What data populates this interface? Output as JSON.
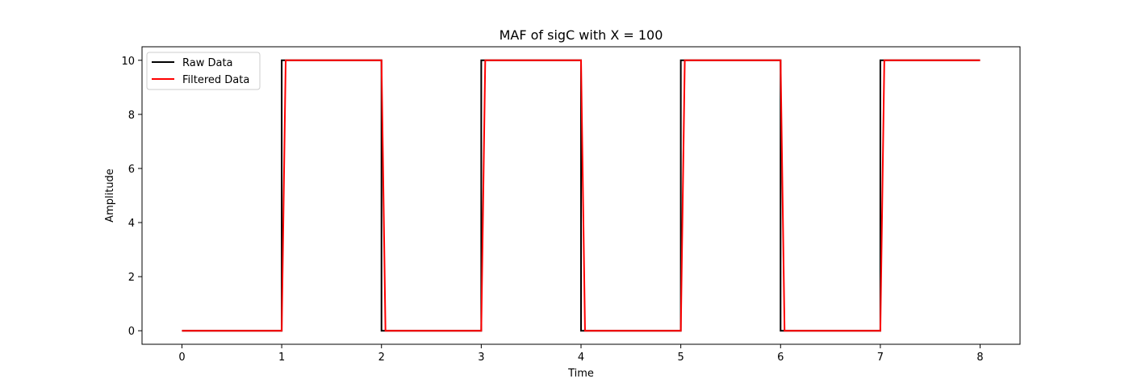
{
  "chart_data": {
    "type": "line",
    "title": "MAF of sigC with X = 100",
    "xlabel": "Time",
    "ylabel": "Amplitude",
    "xlim": [
      -0.4,
      8.4
    ],
    "ylim": [
      -0.5,
      10.5
    ],
    "xticks": [
      0,
      1,
      2,
      3,
      4,
      5,
      6,
      7,
      8
    ],
    "yticks": [
      0,
      2,
      4,
      6,
      8,
      10
    ],
    "grid": false,
    "legend": "top-left",
    "series": [
      {
        "name": "Raw Data",
        "color": "#000000",
        "x": [
          0,
          1,
          1.0,
          2,
          2.0,
          3,
          3.0,
          4,
          4.0,
          5,
          5.0,
          6,
          6.0,
          7,
          7.0,
          8
        ],
        "y": [
          0,
          0,
          10,
          10,
          0,
          0,
          10,
          10,
          0,
          0,
          10,
          10,
          0,
          0,
          10,
          10
        ]
      },
      {
        "name": "Filtered Data",
        "color": "#ff0000",
        "x": [
          0,
          1,
          1.04,
          2,
          2.04,
          3,
          3.04,
          4,
          4.04,
          5,
          5.04,
          6,
          6.04,
          7,
          7.04,
          8
        ],
        "y": [
          0,
          0,
          10,
          10,
          0,
          0,
          10,
          10,
          0,
          0,
          10,
          10,
          0,
          0,
          10,
          10
        ]
      }
    ]
  }
}
